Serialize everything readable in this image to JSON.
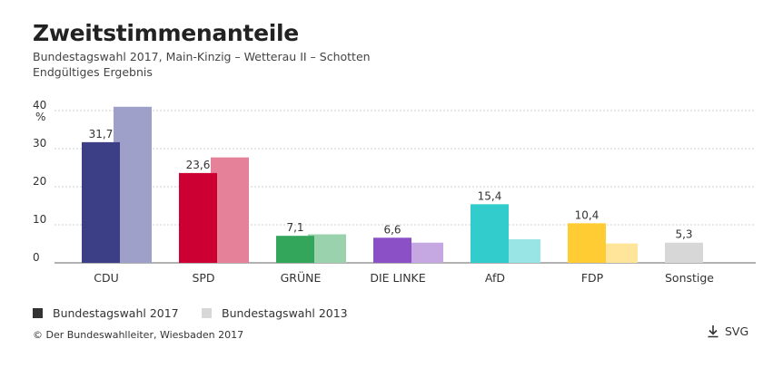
{
  "header": {
    "title": "Zweitstimmenanteile",
    "subtitle": "Bundestagswahl 2017, Main-Kinzig – Wetterau II – Schotten",
    "status": "Endgültiges Ergebnis"
  },
  "chart_data": {
    "type": "bar",
    "ylabel": "%",
    "ylim": [
      0,
      40
    ],
    "yticks": [
      0,
      10,
      20,
      30,
      40
    ],
    "grid": true,
    "categories": [
      "CDU",
      "SPD",
      "GRÜNE",
      "DIE LINKE",
      "AfD",
      "FDP",
      "Sonstige"
    ],
    "series": [
      {
        "name": "Bundestagswahl 2017",
        "values": [
          31.7,
          23.6,
          7.1,
          6.6,
          15.4,
          10.4,
          5.3
        ],
        "labels": [
          "31,7",
          "23,6",
          "7,1",
          "6,6",
          "15,4",
          "10,4",
          "5,3"
        ],
        "colors": [
          "#3d3f86",
          "#cc0033",
          "#33a65c",
          "#8b4fc6",
          "#33cccc",
          "#ffcc33",
          "#d7d7d7"
        ]
      },
      {
        "name": "Bundestagswahl 2013",
        "values": [
          41.0,
          27.7,
          7.5,
          5.3,
          6.2,
          5.1,
          null
        ],
        "colors": [
          "#9fa0c9",
          "#e6819a",
          "#99d2ad",
          "#c5a7e2",
          "#99e5e5",
          "#ffe599",
          "#ebebeb"
        ]
      }
    ],
    "legend_position": "bottom-left"
  },
  "legend": {
    "items": [
      {
        "label": "Bundestagswahl 2017",
        "color": "#333333"
      },
      {
        "label": "Bundestagswahl 2013",
        "color": "#d7d7d7"
      }
    ]
  },
  "footer": {
    "source": "© Der Bundeswahlleiter, Wiesbaden 2017",
    "download_label": "SVG",
    "download_icon": "download-icon"
  }
}
